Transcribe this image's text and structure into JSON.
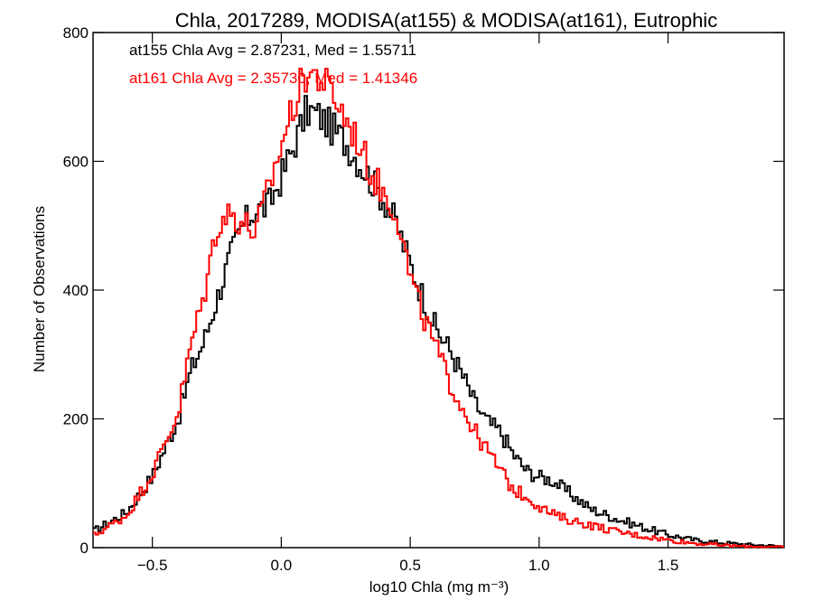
{
  "chart_data": {
    "type": "line",
    "title": "Chla, 2017289, MODISA(at155) & MODISA(at161), Eutrophic",
    "xlabel": "log10 Chla (mg m⁻³)",
    "ylabel": "Number of Observations",
    "xlim": [
      -0.73,
      1.95
    ],
    "ylim": [
      0,
      800
    ],
    "x_ticks": [
      -0.5,
      0.0,
      0.5,
      1.0,
      1.5
    ],
    "x_tick_labels": [
      "−0.5",
      "0.0",
      "0.5",
      "1.0",
      "1.5"
    ],
    "y_ticks": [
      0,
      200,
      400,
      600,
      800
    ],
    "y_tick_labels": [
      "0",
      "200",
      "400",
      "600",
      "800"
    ],
    "grid": false,
    "legend": "top-left",
    "annotations": [
      {
        "text": "at155 Chla Avg = 2.87231, Med = 1.55711",
        "color": "#000000"
      },
      {
        "text": "at161 Chla Avg = 2.35730, Med = 1.41346",
        "color": "#ff0000"
      }
    ],
    "series": [
      {
        "color": "#000000",
        "x": [
          -0.73,
          -0.6,
          -0.5,
          -0.4,
          -0.35,
          -0.3,
          -0.25,
          -0.2,
          -0.15,
          -0.1,
          -0.05,
          0.0,
          0.05,
          0.1,
          0.15,
          0.2,
          0.25,
          0.3,
          0.35,
          0.4,
          0.45,
          0.5,
          0.55,
          0.6,
          0.65,
          0.7,
          0.75,
          0.8,
          0.85,
          0.9,
          0.95,
          1.0,
          1.05,
          1.1,
          1.2,
          1.3,
          1.4,
          1.5,
          1.6,
          1.7,
          1.8,
          1.95
        ],
        "values": [
          25,
          55,
          110,
          200,
          275,
          320,
          385,
          450,
          500,
          525,
          530,
          575,
          625,
          680,
          670,
          650,
          630,
          600,
          570,
          540,
          500,
          440,
          390,
          340,
          310,
          270,
          225,
          195,
          180,
          145,
          120,
          110,
          105,
          90,
          60,
          45,
          32,
          20,
          12,
          8,
          5,
          2
        ]
      },
      {
        "color": "#ff0000",
        "x": [
          -0.73,
          -0.6,
          -0.5,
          -0.4,
          -0.35,
          -0.3,
          -0.25,
          -0.2,
          -0.15,
          -0.1,
          -0.05,
          0.0,
          0.05,
          0.1,
          0.15,
          0.2,
          0.25,
          0.3,
          0.35,
          0.4,
          0.45,
          0.5,
          0.55,
          0.6,
          0.65,
          0.7,
          0.75,
          0.8,
          0.85,
          0.9,
          0.95,
          1.0,
          1.05,
          1.1,
          1.2,
          1.3,
          1.4,
          1.5,
          1.6,
          1.7,
          1.8,
          1.95
        ],
        "values": [
          18,
          50,
          115,
          210,
          315,
          390,
          500,
          520,
          505,
          490,
          555,
          625,
          690,
          740,
          730,
          705,
          665,
          630,
          580,
          550,
          520,
          420,
          360,
          310,
          260,
          220,
          180,
          150,
          120,
          90,
          80,
          65,
          52,
          45,
          35,
          25,
          18,
          12,
          7,
          4,
          2,
          1
        ]
      }
    ]
  }
}
